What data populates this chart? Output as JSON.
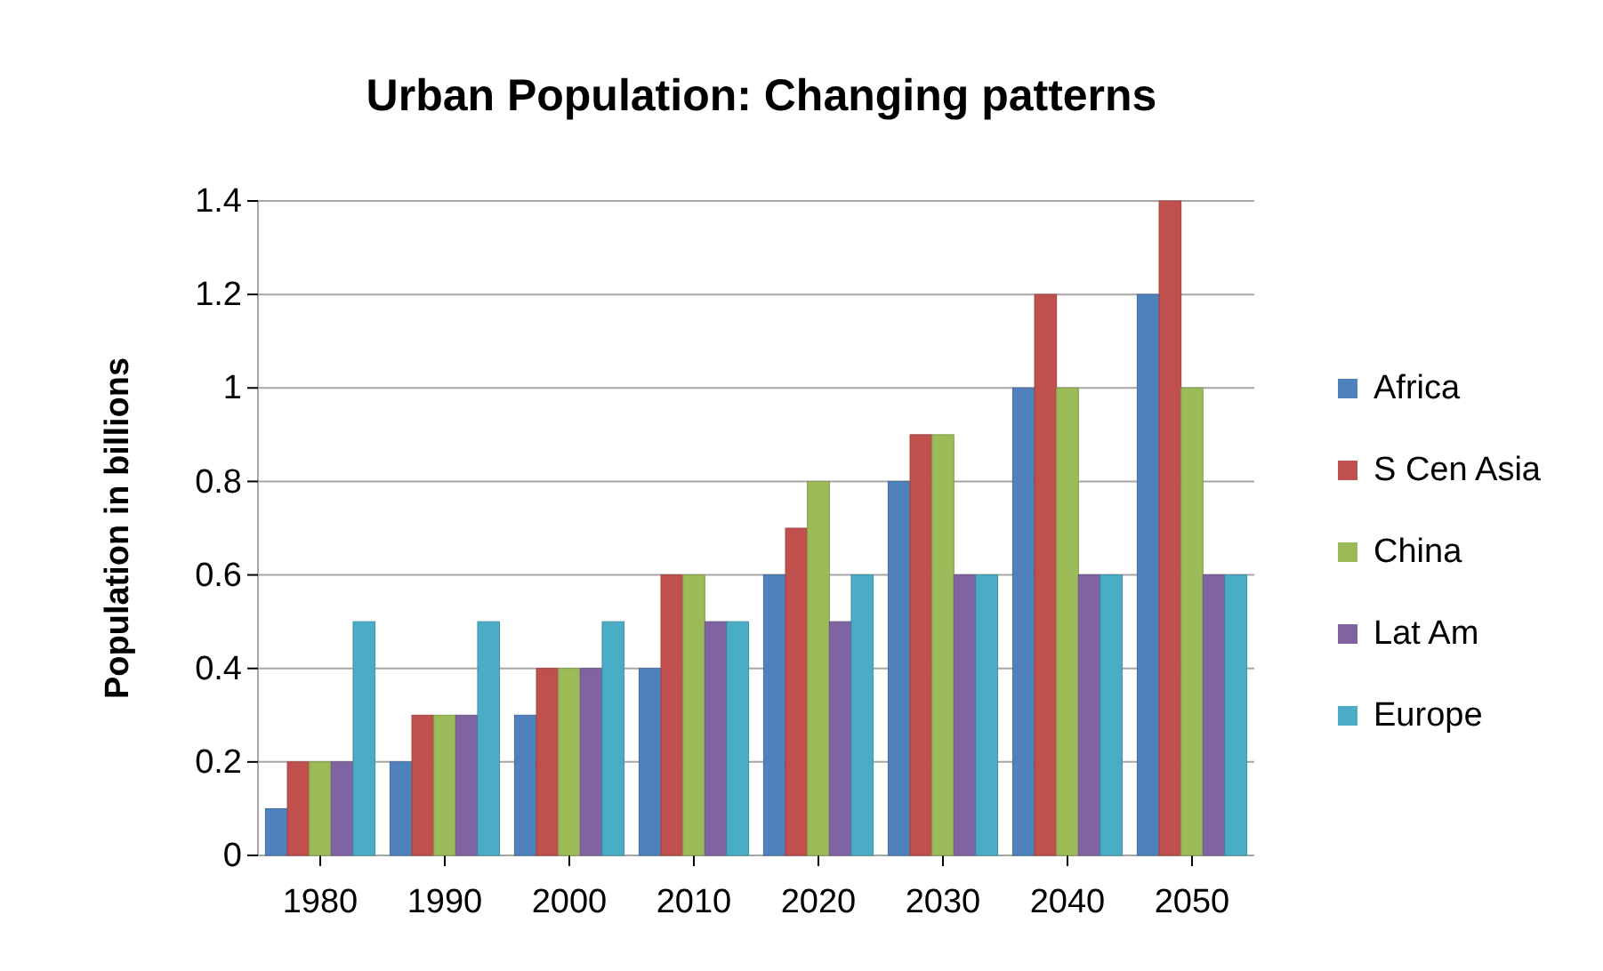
{
  "chart_data": {
    "type": "bar",
    "title": "Urban Population: Changing patterns",
    "ylabel": "Population in billions",
    "categories": [
      "1980",
      "1990",
      "2000",
      "2010",
      "2020",
      "2030",
      "2040",
      "2050"
    ],
    "series": [
      {
        "name": "Africa",
        "color": "#4f81bd",
        "values": [
          0.1,
          0.2,
          0.3,
          0.4,
          0.6,
          0.8,
          1.0,
          1.2
        ]
      },
      {
        "name": "S Cen Asia",
        "color": "#c0504d",
        "values": [
          0.2,
          0.3,
          0.4,
          0.6,
          0.7,
          0.9,
          1.2,
          1.4
        ]
      },
      {
        "name": "China",
        "color": "#9bbb59",
        "values": [
          0.2,
          0.3,
          0.4,
          0.6,
          0.8,
          0.9,
          1.0,
          1.0
        ]
      },
      {
        "name": "Lat Am",
        "color": "#8064a2",
        "values": [
          0.2,
          0.3,
          0.4,
          0.5,
          0.5,
          0.6,
          0.6,
          0.6
        ]
      },
      {
        "name": "Europe",
        "color": "#4bacc6",
        "values": [
          0.5,
          0.5,
          0.5,
          0.5,
          0.6,
          0.6,
          0.6,
          0.6
        ]
      }
    ],
    "ylim": [
      0,
      1.4
    ],
    "yticks": [
      0,
      0.2,
      0.4,
      0.6,
      0.8,
      1,
      1.2,
      1.4
    ],
    "grid": "y",
    "legend": "right"
  }
}
